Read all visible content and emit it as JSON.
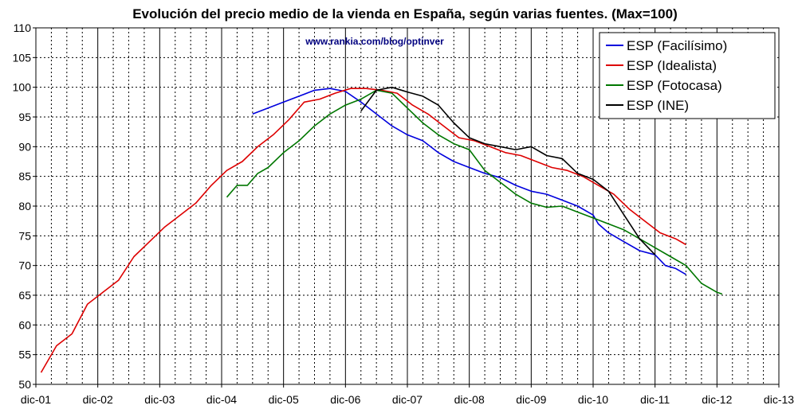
{
  "chart_data": {
    "type": "line",
    "title": "Evolución del precio medio de la vienda en España, según varias fuentes. (Max=100)",
    "watermark": "www.rankia.com/blog/optinver",
    "xlabel": "",
    "ylabel": "",
    "x_ticks": [
      "dic-01",
      "dic-02",
      "dic-03",
      "dic-04",
      "dic-05",
      "dic-06",
      "dic-07",
      "dic-08",
      "dic-09",
      "dic-10",
      "dic-11",
      "dic-12",
      "dic-13"
    ],
    "x_range": [
      "dic-01",
      "dic-13"
    ],
    "y_ticks": [
      50,
      55,
      60,
      65,
      70,
      75,
      80,
      85,
      90,
      95,
      100,
      105,
      110
    ],
    "ylim": [
      50,
      110
    ],
    "grid": true,
    "legend_position": "top-right",
    "series": [
      {
        "name": "ESP (Facilísimo)",
        "color": "#0000dd",
        "points": [
          [
            "2005-06",
            95.5
          ],
          [
            "2005-09",
            96.5
          ],
          [
            "2005-12",
            97.5
          ],
          [
            "2006-03",
            98.5
          ],
          [
            "2006-06",
            99.5
          ],
          [
            "2006-09",
            99.8
          ],
          [
            "2006-12",
            99.3
          ],
          [
            "2007-03",
            97.5
          ],
          [
            "2007-06",
            95.5
          ],
          [
            "2007-09",
            93.5
          ],
          [
            "2007-12",
            92.0
          ],
          [
            "2008-03",
            91.0
          ],
          [
            "2008-06",
            89.0
          ],
          [
            "2008-09",
            87.5
          ],
          [
            "2008-12",
            86.5
          ],
          [
            "2009-03",
            85.5
          ],
          [
            "2009-06",
            84.8
          ],
          [
            "2009-09",
            83.5
          ],
          [
            "2009-12",
            82.5
          ],
          [
            "2010-03",
            82.0
          ],
          [
            "2010-06",
            81.0
          ],
          [
            "2010-09",
            80.0
          ],
          [
            "2010-12",
            78.5
          ],
          [
            "2011-01",
            77.0
          ],
          [
            "2011-03",
            75.5
          ],
          [
            "2011-06",
            74.0
          ],
          [
            "2011-09",
            72.5
          ],
          [
            "2011-12",
            71.8
          ],
          [
            "2012-02",
            70.0
          ],
          [
            "2012-04",
            69.5
          ],
          [
            "2012-06",
            68.5
          ]
        ]
      },
      {
        "name": "ESP (Idealista)",
        "color": "#dd0000",
        "points": [
          [
            "2002-01",
            52.0
          ],
          [
            "2002-04",
            56.5
          ],
          [
            "2002-07",
            58.5
          ],
          [
            "2002-10",
            63.5
          ],
          [
            "2003-01",
            65.5
          ],
          [
            "2003-04",
            67.5
          ],
          [
            "2003-07",
            71.5
          ],
          [
            "2003-10",
            74.0
          ],
          [
            "2004-01",
            76.5
          ],
          [
            "2004-04",
            78.5
          ],
          [
            "2004-07",
            80.5
          ],
          [
            "2004-10",
            83.5
          ],
          [
            "2005-01",
            86.0
          ],
          [
            "2005-04",
            87.5
          ],
          [
            "2005-07",
            90.0
          ],
          [
            "2005-10",
            92.0
          ],
          [
            "2006-01",
            94.5
          ],
          [
            "2006-04",
            97.5
          ],
          [
            "2006-07",
            98.0
          ],
          [
            "2006-10",
            99.0
          ],
          [
            "2007-01",
            99.8
          ],
          [
            "2007-04",
            99.8
          ],
          [
            "2007-07",
            99.5
          ],
          [
            "2007-10",
            99.0
          ],
          [
            "2008-01",
            97.0
          ],
          [
            "2008-04",
            95.5
          ],
          [
            "2008-07",
            93.5
          ],
          [
            "2008-10",
            91.5
          ],
          [
            "2009-01",
            91.0
          ],
          [
            "2009-04",
            90.0
          ],
          [
            "2009-07",
            89.0
          ],
          [
            "2009-10",
            88.5
          ],
          [
            "2010-01",
            87.5
          ],
          [
            "2010-04",
            86.5
          ],
          [
            "2010-07",
            86.0
          ],
          [
            "2010-10",
            85.0
          ],
          [
            "2011-01",
            83.5
          ],
          [
            "2011-04",
            82.0
          ],
          [
            "2011-07",
            79.5
          ],
          [
            "2011-10",
            77.5
          ],
          [
            "2012-01",
            75.5
          ],
          [
            "2012-04",
            74.5
          ],
          [
            "2012-06",
            73.5
          ]
        ]
      },
      {
        "name": "ESP (Fotocasa)",
        "color": "#007700",
        "points": [
          [
            "2005-01",
            81.5
          ],
          [
            "2005-03",
            83.5
          ],
          [
            "2005-05",
            83.5
          ],
          [
            "2005-07",
            85.5
          ],
          [
            "2005-09",
            86.5
          ],
          [
            "2005-12",
            89.0
          ],
          [
            "2006-03",
            91.0
          ],
          [
            "2006-06",
            93.5
          ],
          [
            "2006-09",
            95.5
          ],
          [
            "2006-12",
            97.0
          ],
          [
            "2007-03",
            98.0
          ],
          [
            "2007-06",
            99.5
          ],
          [
            "2007-09",
            99.0
          ],
          [
            "2007-12",
            96.5
          ],
          [
            "2008-03",
            94.0
          ],
          [
            "2008-06",
            92.0
          ],
          [
            "2008-09",
            90.5
          ],
          [
            "2008-12",
            89.5
          ],
          [
            "2009-03",
            86.0
          ],
          [
            "2009-06",
            84.0
          ],
          [
            "2009-09",
            82.0
          ],
          [
            "2009-12",
            80.5
          ],
          [
            "2010-03",
            79.8
          ],
          [
            "2010-06",
            80.0
          ],
          [
            "2010-09",
            79.0
          ],
          [
            "2010-12",
            78.0
          ],
          [
            "2011-03",
            77.0
          ],
          [
            "2011-06",
            76.0
          ],
          [
            "2011-09",
            74.5
          ],
          [
            "2011-12",
            73.0
          ],
          [
            "2012-03",
            71.5
          ],
          [
            "2012-06",
            70.0
          ],
          [
            "2012-09",
            67.0
          ],
          [
            "2012-12",
            65.5
          ],
          [
            "2013-01",
            65.2
          ]
        ]
      },
      {
        "name": "ESP (INE)",
        "color": "#000000",
        "points": [
          [
            "2007-03",
            96.0
          ],
          [
            "2007-06",
            99.5
          ],
          [
            "2007-09",
            100.0
          ],
          [
            "2007-12",
            99.2
          ],
          [
            "2008-03",
            98.5
          ],
          [
            "2008-06",
            97.0
          ],
          [
            "2008-09",
            94.0
          ],
          [
            "2008-12",
            91.5
          ],
          [
            "2009-03",
            90.5
          ],
          [
            "2009-06",
            90.0
          ],
          [
            "2009-09",
            89.5
          ],
          [
            "2009-12",
            90.0
          ],
          [
            "2010-03",
            88.5
          ],
          [
            "2010-06",
            88.0
          ],
          [
            "2010-09",
            85.5
          ],
          [
            "2010-12",
            84.5
          ],
          [
            "2011-03",
            82.5
          ],
          [
            "2011-06",
            78.5
          ],
          [
            "2011-09",
            74.5
          ],
          [
            "2011-12",
            71.8
          ]
        ]
      }
    ]
  }
}
